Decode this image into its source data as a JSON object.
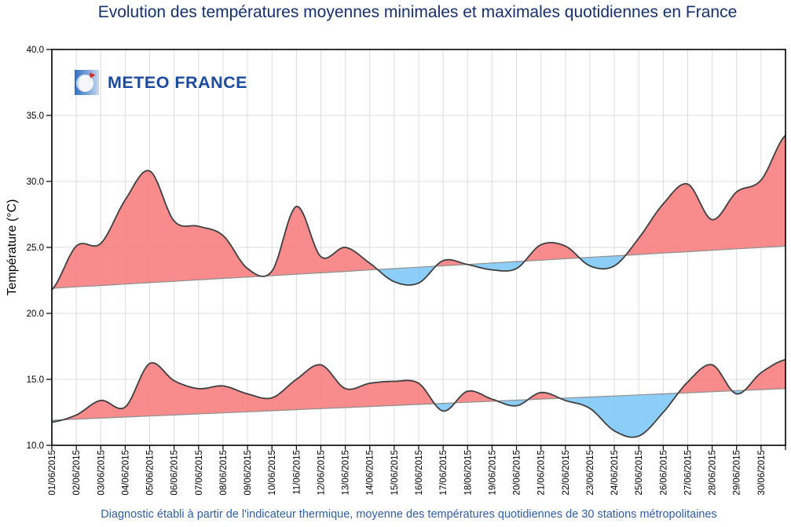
{
  "page": {
    "logo_text": "METEO FRANCE"
  },
  "chart_data": {
    "type": "area",
    "title": "Evolution des températures moyennes minimales et maximales quotidiennes en France",
    "subtitle": "Diagnostic établi à partir de l'indicateur thermique, moyenne des températures quotidiennes de 30 stations métropolitaines",
    "ylabel": "Température (°C)",
    "ylim": [
      10,
      40
    ],
    "yticks": [
      "10.0",
      "15.0",
      "20.0",
      "25.0",
      "30.0",
      "35.0",
      "40.0"
    ],
    "grid": true,
    "legend": "none",
    "x_labels": [
      "01/06/2015",
      "02/06/2015",
      "03/06/2015",
      "04/06/2015",
      "05/06/2015",
      "06/06/2015",
      "07/06/2015",
      "08/06/2015",
      "09/06/2015",
      "10/06/2015",
      "11/06/2015",
      "12/06/2015",
      "13/06/2015",
      "14/06/2015",
      "15/06/2015",
      "16/06/2015",
      "17/06/2015",
      "18/06/2015",
      "19/06/2015",
      "20/06/2015",
      "21/06/2015",
      "22/06/2015",
      "23/06/2015",
      "24/06/2015",
      "25/06/2015",
      "26/06/2015",
      "27/06/2015",
      "28/06/2015",
      "29/06/2015",
      "30/06/2015"
    ],
    "note": "Each series has 31 values: one per labelled day 01/06-30/06 plus a final value where the curve meets the right edge of the plot. Red areas = temperature above normal, blue areas = below normal.",
    "series": {
      "max_actual": {
        "description": "Température maximale moyenne quotidienne (courbe haute)",
        "values": [
          21.8,
          25.1,
          25.3,
          28.6,
          30.8,
          27.0,
          26.6,
          25.9,
          23.4,
          23.2,
          28.1,
          24.3,
          25.0,
          23.8,
          22.4,
          22.3,
          24.0,
          23.7,
          23.3,
          23.4,
          25.2,
          25.1,
          23.6,
          23.6,
          25.7,
          28.3,
          29.8,
          27.1,
          29.2,
          30.1,
          33.5
        ]
      },
      "max_normal": {
        "description": "Normale des températures maximales (ligne de référence haute)",
        "values": [
          21.9,
          22.01,
          22.11,
          22.22,
          22.33,
          22.43,
          22.54,
          22.65,
          22.75,
          22.86,
          22.97,
          23.07,
          23.18,
          23.29,
          23.39,
          23.5,
          23.61,
          23.71,
          23.82,
          23.93,
          24.03,
          24.14,
          24.25,
          24.35,
          24.46,
          24.57,
          24.67,
          24.78,
          24.89,
          24.99,
          25.1
        ]
      },
      "min_actual": {
        "description": "Température minimale moyenne quotidienne (courbe basse)",
        "values": [
          11.75,
          12.3,
          13.4,
          12.9,
          16.2,
          14.9,
          14.3,
          14.5,
          13.9,
          13.6,
          15.0,
          16.1,
          14.3,
          14.7,
          14.85,
          14.7,
          12.6,
          14.1,
          13.5,
          13.0,
          14.0,
          13.4,
          12.8,
          11.1,
          10.7,
          12.5,
          14.8,
          16.1,
          13.9,
          15.5,
          16.5
        ]
      },
      "min_normal": {
        "description": "Normale des températures minimales (ligne de référence basse)",
        "values": [
          11.9,
          11.98,
          12.06,
          12.14,
          12.22,
          12.3,
          12.38,
          12.46,
          12.54,
          12.62,
          12.7,
          12.78,
          12.86,
          12.94,
          13.02,
          13.1,
          13.18,
          13.26,
          13.34,
          13.42,
          13.5,
          13.58,
          13.66,
          13.74,
          13.82,
          13.9,
          13.98,
          14.06,
          14.14,
          14.22,
          14.3
        ]
      }
    },
    "colors": {
      "above_normal": "#f77f7f",
      "below_normal": "#7fc9f7",
      "curve": "#3f3f3f",
      "normal_line": "#8f8f8f",
      "grid": "#dcdcdc",
      "frame": "#000000",
      "title": "#16306e",
      "footer": "#2f5fa8",
      "logo_blue": "#1b4a9e",
      "logo_red": "#d5281f"
    }
  }
}
